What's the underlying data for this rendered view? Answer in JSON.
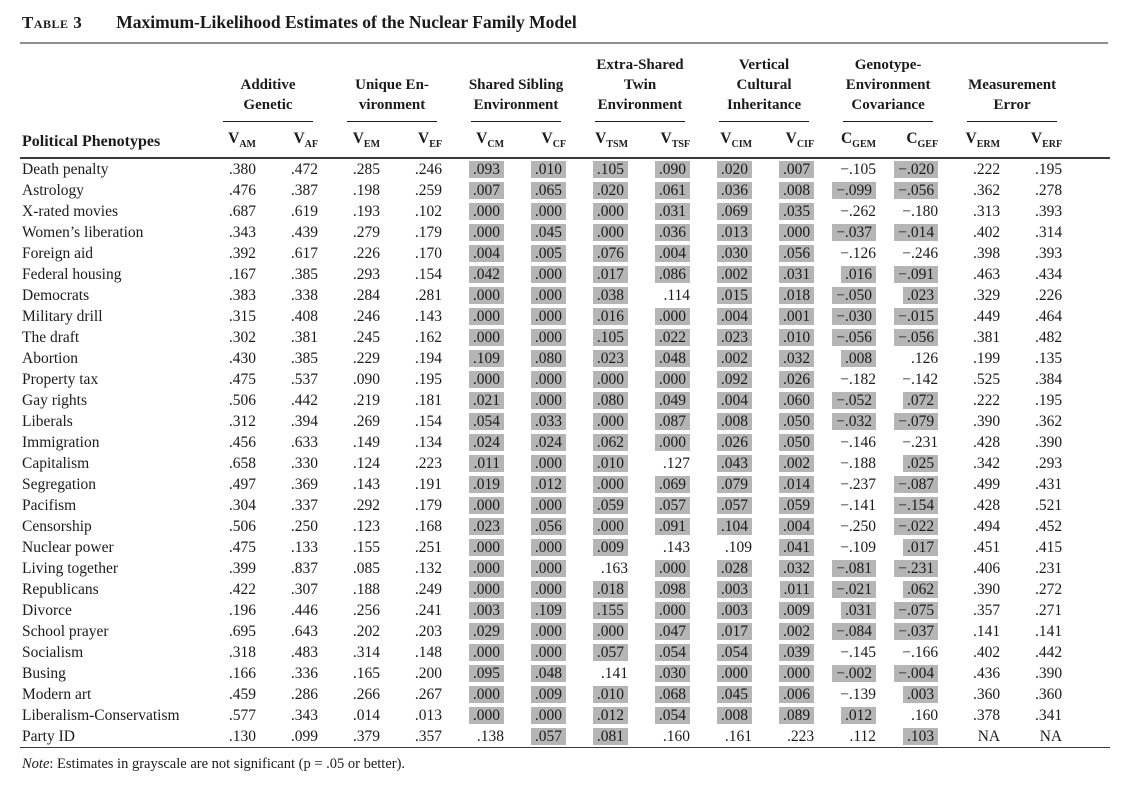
{
  "title": {
    "label": "Table 3",
    "text": "Maximum-Likelihood Estimates of the Nuclear Family Model"
  },
  "colors": {
    "grayscale_highlight": "#b5b5b5",
    "rule_gray": "#8f8f8f",
    "rule_dark": "#3a3a3a"
  },
  "table": {
    "row_header": "Political Phenotypes",
    "groups": [
      {
        "lines": [
          "Additive",
          "Genetic"
        ]
      },
      {
        "lines": [
          "Unique En-",
          "vironment"
        ]
      },
      {
        "lines": [
          "Shared Sibling",
          "Environment"
        ]
      },
      {
        "lines": [
          "Extra-Shared",
          "Twin",
          "Environment"
        ]
      },
      {
        "lines": [
          "Vertical",
          "Cultural",
          "Inheritance"
        ]
      },
      {
        "lines": [
          "Genotype-",
          "Environment",
          "Covariance"
        ]
      },
      {
        "lines": [
          "Measurement",
          "Error"
        ]
      }
    ],
    "columns": [
      {
        "base": "V",
        "sub": "AM"
      },
      {
        "base": "V",
        "sub": "AF"
      },
      {
        "base": "V",
        "sub": "EM"
      },
      {
        "base": "V",
        "sub": "EF"
      },
      {
        "base": "V",
        "sub": "CM"
      },
      {
        "base": "V",
        "sub": "CF"
      },
      {
        "base": "V",
        "sub": "TSM"
      },
      {
        "base": "V",
        "sub": "TSF"
      },
      {
        "base": "V",
        "sub": "CIM"
      },
      {
        "base": "V",
        "sub": "CIF"
      },
      {
        "base": "C",
        "sub": "GEM"
      },
      {
        "base": "C",
        "sub": "GEF"
      },
      {
        "base": "V",
        "sub": "ERM"
      },
      {
        "base": "V",
        "sub": "ERF"
      }
    ],
    "rows": [
      {
        "label": "Death penalty",
        "values": [
          ".380",
          ".472",
          ".285",
          ".246",
          ".093",
          ".010",
          ".105",
          ".090",
          ".020",
          ".007",
          "−.105",
          "−.020",
          ".222",
          ".195"
        ],
        "grayscale": [
          0,
          0,
          0,
          0,
          1,
          1,
          1,
          1,
          1,
          1,
          0,
          1,
          0,
          0
        ]
      },
      {
        "label": "Astrology",
        "values": [
          ".476",
          ".387",
          ".198",
          ".259",
          ".007",
          ".065",
          ".020",
          ".061",
          ".036",
          ".008",
          "−.099",
          "−.056",
          ".362",
          ".278"
        ],
        "grayscale": [
          0,
          0,
          0,
          0,
          1,
          1,
          1,
          1,
          1,
          1,
          1,
          1,
          0,
          0
        ]
      },
      {
        "label": "X-rated movies",
        "values": [
          ".687",
          ".619",
          ".193",
          ".102",
          ".000",
          ".000",
          ".000",
          ".031",
          ".069",
          ".035",
          "−.262",
          "−.180",
          ".313",
          ".393"
        ],
        "grayscale": [
          0,
          0,
          0,
          0,
          1,
          1,
          1,
          1,
          1,
          1,
          0,
          0,
          0,
          0
        ]
      },
      {
        "label": "Women’s liberation",
        "values": [
          ".343",
          ".439",
          ".279",
          ".179",
          ".000",
          ".045",
          ".000",
          ".036",
          ".013",
          ".000",
          "−.037",
          "−.014",
          ".402",
          ".314"
        ],
        "grayscale": [
          0,
          0,
          0,
          0,
          1,
          1,
          1,
          1,
          1,
          1,
          1,
          1,
          0,
          0
        ]
      },
      {
        "label": "Foreign aid",
        "values": [
          ".392",
          ".617",
          ".226",
          ".170",
          ".004",
          ".005",
          ".076",
          ".004",
          ".030",
          ".056",
          "−.126",
          "−.246",
          ".398",
          ".393"
        ],
        "grayscale": [
          0,
          0,
          0,
          0,
          1,
          1,
          1,
          1,
          1,
          1,
          0,
          0,
          0,
          0
        ]
      },
      {
        "label": "Federal housing",
        "values": [
          ".167",
          ".385",
          ".293",
          ".154",
          ".042",
          ".000",
          ".017",
          ".086",
          ".002",
          ".031",
          ".016",
          "−.091",
          ".463",
          ".434"
        ],
        "grayscale": [
          0,
          0,
          0,
          0,
          1,
          1,
          1,
          1,
          1,
          1,
          1,
          1,
          0,
          0
        ]
      },
      {
        "label": "Democrats",
        "values": [
          ".383",
          ".338",
          ".284",
          ".281",
          ".000",
          ".000",
          ".038",
          ".114",
          ".015",
          ".018",
          "−.050",
          ".023",
          ".329",
          ".226"
        ],
        "grayscale": [
          0,
          0,
          0,
          0,
          1,
          1,
          1,
          0,
          1,
          1,
          1,
          1,
          0,
          0
        ]
      },
      {
        "label": "Military drill",
        "values": [
          ".315",
          ".408",
          ".246",
          ".143",
          ".000",
          ".000",
          ".016",
          ".000",
          ".004",
          ".001",
          "−.030",
          "−.015",
          ".449",
          ".464"
        ],
        "grayscale": [
          0,
          0,
          0,
          0,
          1,
          1,
          1,
          1,
          1,
          1,
          1,
          1,
          0,
          0
        ]
      },
      {
        "label": "The draft",
        "values": [
          ".302",
          ".381",
          ".245",
          ".162",
          ".000",
          ".000",
          ".105",
          ".022",
          ".023",
          ".010",
          "−.056",
          "−.056",
          ".381",
          ".482"
        ],
        "grayscale": [
          0,
          0,
          0,
          0,
          1,
          1,
          1,
          1,
          1,
          1,
          1,
          1,
          0,
          0
        ]
      },
      {
        "label": "Abortion",
        "values": [
          ".430",
          ".385",
          ".229",
          ".194",
          ".109",
          ".080",
          ".023",
          ".048",
          ".002",
          ".032",
          ".008",
          ".126",
          ".199",
          ".135"
        ],
        "grayscale": [
          0,
          0,
          0,
          0,
          1,
          1,
          1,
          1,
          1,
          1,
          1,
          0,
          0,
          0
        ]
      },
      {
        "label": "Property tax",
        "values": [
          ".475",
          ".537",
          ".090",
          ".195",
          ".000",
          ".000",
          ".000",
          ".000",
          ".092",
          ".026",
          "−.182",
          "−.142",
          ".525",
          ".384"
        ],
        "grayscale": [
          0,
          0,
          0,
          0,
          1,
          1,
          1,
          1,
          1,
          1,
          0,
          0,
          0,
          0
        ]
      },
      {
        "label": "Gay rights",
        "values": [
          ".506",
          ".442",
          ".219",
          ".181",
          ".021",
          ".000",
          ".080",
          ".049",
          ".004",
          ".060",
          "−.052",
          ".072",
          ".222",
          ".195"
        ],
        "grayscale": [
          0,
          0,
          0,
          0,
          1,
          1,
          1,
          1,
          1,
          1,
          1,
          1,
          0,
          0
        ]
      },
      {
        "label": "Liberals",
        "values": [
          ".312",
          ".394",
          ".269",
          ".154",
          ".054",
          ".033",
          ".000",
          ".087",
          ".008",
          ".050",
          "−.032",
          "−.079",
          ".390",
          ".362"
        ],
        "grayscale": [
          0,
          0,
          0,
          0,
          1,
          1,
          1,
          1,
          1,
          1,
          1,
          1,
          0,
          0
        ]
      },
      {
        "label": "Immigration",
        "values": [
          ".456",
          ".633",
          ".149",
          ".134",
          ".024",
          ".024",
          ".062",
          ".000",
          ".026",
          ".050",
          "−.146",
          "−.231",
          ".428",
          ".390"
        ],
        "grayscale": [
          0,
          0,
          0,
          0,
          1,
          1,
          1,
          1,
          1,
          1,
          0,
          0,
          0,
          0
        ]
      },
      {
        "label": "Capitalism",
        "values": [
          ".658",
          ".330",
          ".124",
          ".223",
          ".011",
          ".000",
          ".010",
          ".127",
          ".043",
          ".002",
          "−.188",
          ".025",
          ".342",
          ".293"
        ],
        "grayscale": [
          0,
          0,
          0,
          0,
          1,
          1,
          1,
          0,
          1,
          1,
          0,
          1,
          0,
          0
        ]
      },
      {
        "label": "Segregation",
        "values": [
          ".497",
          ".369",
          ".143",
          ".191",
          ".019",
          ".012",
          ".000",
          ".069",
          ".079",
          ".014",
          "−.237",
          "−.087",
          ".499",
          ".431"
        ],
        "grayscale": [
          0,
          0,
          0,
          0,
          1,
          1,
          1,
          1,
          1,
          1,
          0,
          1,
          0,
          0
        ]
      },
      {
        "label": "Pacifism",
        "values": [
          ".304",
          ".337",
          ".292",
          ".179",
          ".000",
          ".000",
          ".059",
          ".057",
          ".057",
          ".059",
          "−.141",
          "−.154",
          ".428",
          ".521"
        ],
        "grayscale": [
          0,
          0,
          0,
          0,
          1,
          1,
          1,
          1,
          1,
          1,
          0,
          1,
          0,
          0
        ]
      },
      {
        "label": "Censorship",
        "values": [
          ".506",
          ".250",
          ".123",
          ".168",
          ".023",
          ".056",
          ".000",
          ".091",
          ".104",
          ".004",
          "−.250",
          "−.022",
          ".494",
          ".452"
        ],
        "grayscale": [
          0,
          0,
          0,
          0,
          1,
          1,
          1,
          1,
          1,
          1,
          0,
          1,
          0,
          0
        ]
      },
      {
        "label": "Nuclear power",
        "values": [
          ".475",
          ".133",
          ".155",
          ".251",
          ".000",
          ".000",
          ".009",
          ".143",
          ".109",
          ".041",
          "−.109",
          ".017",
          ".451",
          ".415"
        ],
        "grayscale": [
          0,
          0,
          0,
          0,
          1,
          1,
          1,
          0,
          0,
          1,
          0,
          1,
          0,
          0
        ]
      },
      {
        "label": "Living together",
        "values": [
          ".399",
          ".837",
          ".085",
          ".132",
          ".000",
          ".000",
          ".163",
          ".000",
          ".028",
          ".032",
          "−.081",
          "−.231",
          ".406",
          ".231"
        ],
        "grayscale": [
          0,
          0,
          0,
          0,
          1,
          1,
          0,
          1,
          1,
          1,
          1,
          1,
          0,
          0
        ]
      },
      {
        "label": "Republicans",
        "values": [
          ".422",
          ".307",
          ".188",
          ".249",
          ".000",
          ".000",
          ".018",
          ".098",
          ".003",
          ".011",
          "−.021",
          ".062",
          ".390",
          ".272"
        ],
        "grayscale": [
          0,
          0,
          0,
          0,
          1,
          1,
          1,
          1,
          1,
          1,
          1,
          1,
          0,
          0
        ]
      },
      {
        "label": "Divorce",
        "values": [
          ".196",
          ".446",
          ".256",
          ".241",
          ".003",
          ".109",
          ".155",
          ".000",
          ".003",
          ".009",
          ".031",
          "−.075",
          ".357",
          ".271"
        ],
        "grayscale": [
          0,
          0,
          0,
          0,
          1,
          1,
          1,
          1,
          1,
          1,
          1,
          1,
          0,
          0
        ]
      },
      {
        "label": "School prayer",
        "values": [
          ".695",
          ".643",
          ".202",
          ".203",
          ".029",
          ".000",
          ".000",
          ".047",
          ".017",
          ".002",
          "−.084",
          "−.037",
          ".141",
          ".141"
        ],
        "grayscale": [
          0,
          0,
          0,
          0,
          1,
          1,
          1,
          1,
          1,
          1,
          1,
          1,
          0,
          0
        ]
      },
      {
        "label": "Socialism",
        "values": [
          ".318",
          ".483",
          ".314",
          ".148",
          ".000",
          ".000",
          ".057",
          ".054",
          ".054",
          ".039",
          "−.145",
          "−.166",
          ".402",
          ".442"
        ],
        "grayscale": [
          0,
          0,
          0,
          0,
          1,
          1,
          1,
          1,
          1,
          1,
          0,
          0,
          0,
          0
        ]
      },
      {
        "label": "Busing",
        "values": [
          ".166",
          ".336",
          ".165",
          ".200",
          ".095",
          ".048",
          ".141",
          ".030",
          ".000",
          ".000",
          "−.002",
          "−.004",
          ".436",
          ".390"
        ],
        "grayscale": [
          0,
          0,
          0,
          0,
          1,
          1,
          0,
          1,
          1,
          1,
          1,
          1,
          0,
          0
        ]
      },
      {
        "label": "Modern art",
        "values": [
          ".459",
          ".286",
          ".266",
          ".267",
          ".000",
          ".009",
          ".010",
          ".068",
          ".045",
          ".006",
          "−.139",
          ".003",
          ".360",
          ".360"
        ],
        "grayscale": [
          0,
          0,
          0,
          0,
          1,
          1,
          1,
          1,
          1,
          1,
          0,
          1,
          0,
          0
        ]
      },
      {
        "label": "Liberalism-Conservatism",
        "values": [
          ".577",
          ".343",
          ".014",
          ".013",
          ".000",
          ".000",
          ".012",
          ".054",
          ".008",
          ".089",
          ".012",
          ".160",
          ".378",
          ".341"
        ],
        "grayscale": [
          0,
          0,
          0,
          0,
          1,
          1,
          1,
          1,
          1,
          1,
          1,
          0,
          0,
          0
        ]
      },
      {
        "label": "Party ID",
        "values": [
          ".130",
          ".099",
          ".379",
          ".357",
          ".138",
          ".057",
          ".081",
          ".160",
          ".161",
          ".223",
          ".112",
          ".103",
          "NA",
          "NA"
        ],
        "grayscale": [
          0,
          0,
          0,
          0,
          0,
          1,
          1,
          0,
          0,
          0,
          0,
          1,
          0,
          0
        ]
      }
    ]
  },
  "note": {
    "prefix": "Note",
    "body": ": Estimates in grayscale are not significant (p = .05 or better)."
  }
}
